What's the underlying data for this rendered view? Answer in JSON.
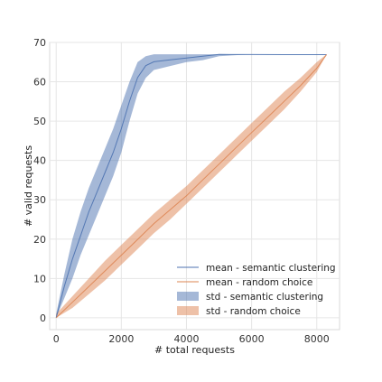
{
  "chart_data": {
    "type": "line",
    "xlabel": "# total requests",
    "ylabel": "# valid requests",
    "xlim": [
      -200,
      8700
    ],
    "ylim": [
      -3,
      70
    ],
    "xticks": [
      0,
      2000,
      4000,
      6000,
      8000
    ],
    "yticks": [
      0,
      10,
      20,
      30,
      40,
      50,
      60,
      70
    ],
    "xtick_labels": [
      "0",
      "2000",
      "4000",
      "6000",
      "8000"
    ],
    "ytick_labels": [
      "0",
      "10",
      "20",
      "30",
      "40",
      "50",
      "60",
      "70"
    ],
    "grid": true,
    "legend_position": "lower-right",
    "series": [
      {
        "name": "mean - semantic clustering",
        "kind": "mean",
        "color": "#4c72b0",
        "x": [
          0,
          250,
          500,
          750,
          1000,
          1250,
          1500,
          1750,
          2000,
          2250,
          2500,
          2750,
          3000,
          3500,
          4000,
          4500,
          5000,
          6000,
          7000,
          8300
        ],
        "y": [
          0,
          8,
          15,
          21,
          27,
          32,
          37,
          42,
          48,
          55,
          61,
          64,
          65,
          65.5,
          66,
          66.5,
          67,
          67,
          67,
          67
        ]
      },
      {
        "name": "mean - random choice",
        "kind": "mean",
        "color": "#dd8452",
        "x": [
          0,
          500,
          1000,
          1500,
          2000,
          2500,
          3000,
          3500,
          4000,
          4500,
          5000,
          5500,
          6000,
          6500,
          7000,
          7500,
          8000,
          8300
        ],
        "y": [
          0,
          4,
          8,
          12,
          16,
          20,
          24,
          27.5,
          31,
          35,
          39,
          43,
          47,
          51,
          55,
          59,
          63.5,
          67
        ]
      },
      {
        "name": "std - semantic clustering",
        "kind": "std",
        "color": "#4c72b0",
        "x": [
          0,
          250,
          500,
          750,
          1000,
          1250,
          1500,
          1750,
          2000,
          2250,
          2500,
          2750,
          3000,
          3500,
          4000,
          4500,
          5000,
          6000,
          7000,
          8300
        ],
        "lower": [
          0,
          5,
          10,
          16,
          21,
          26,
          31,
          36,
          42,
          50,
          57,
          61,
          63,
          64,
          65,
          65.5,
          66.5,
          67,
          67,
          67
        ],
        "upper": [
          1,
          11,
          20,
          27,
          33,
          38,
          43,
          48,
          54,
          60,
          65,
          66.5,
          67,
          67,
          67,
          67,
          67,
          67,
          67,
          67
        ]
      },
      {
        "name": "std - random choice",
        "kind": "std",
        "color": "#dd8452",
        "x": [
          0,
          500,
          1000,
          1500,
          2000,
          2500,
          3000,
          3500,
          4000,
          4500,
          5000,
          5500,
          6000,
          6500,
          7000,
          7500,
          8000,
          8300
        ],
        "lower": [
          0,
          2.5,
          6,
          9.5,
          13.5,
          17.5,
          21.5,
          25,
          29,
          33,
          37,
          41,
          45,
          49,
          53,
          57.5,
          62.5,
          67
        ],
        "upper": [
          1,
          5.5,
          10,
          14.5,
          18.5,
          22.5,
          26.5,
          30,
          33.5,
          37.5,
          41.5,
          45.5,
          49.5,
          53.5,
          57.5,
          61,
          65,
          67
        ]
      }
    ]
  }
}
